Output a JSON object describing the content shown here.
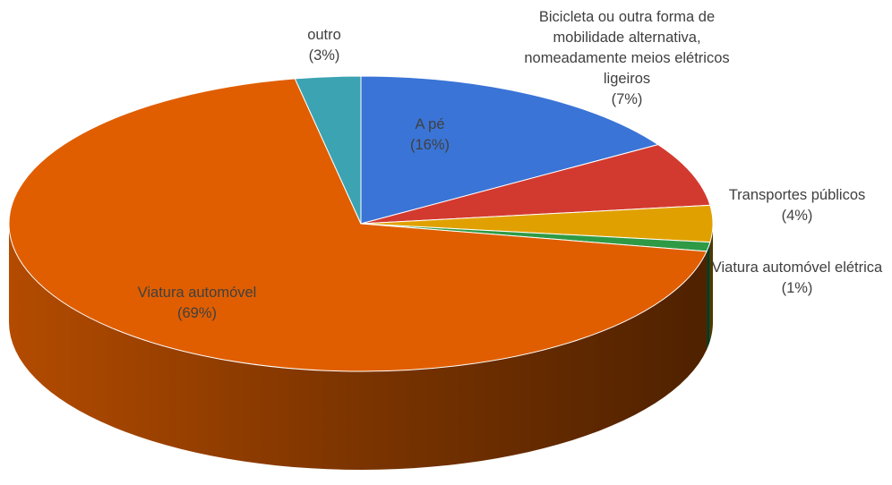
{
  "chart_data": {
    "type": "pie",
    "categories": [
      "A pé",
      "Bicicleta ou outra forma de mobilidade alternativa, nomeadamente meios elétricos ligeiros",
      "Transportes públicos",
      "Viatura automóvel elétrica",
      "Viatura automóvel",
      "outro"
    ],
    "values": [
      16,
      7,
      4,
      1,
      69,
      3
    ],
    "value_labels": [
      "(16%)",
      "(7%)",
      "(4%)",
      "(1%)",
      "(69%)",
      "(3%)"
    ],
    "colors": [
      "#3a74d6",
      "#d33a2f",
      "#e0a100",
      "#2f9a45",
      "#e05e00",
      "#3ba3b1"
    ]
  }
}
